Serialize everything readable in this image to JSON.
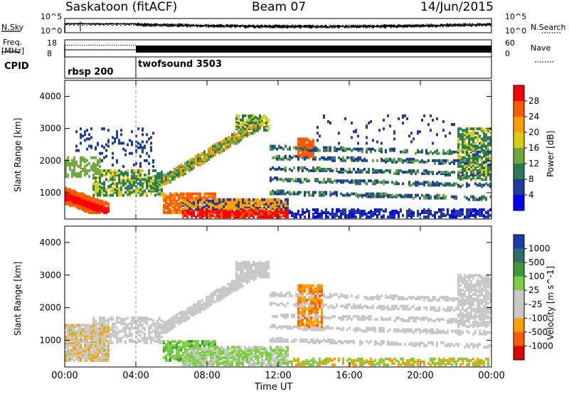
{
  "title": {
    "site": "Saskatoon (fitACF)",
    "beam": "Beam 07",
    "date": "14/Jun/2015"
  },
  "strips": {
    "nsky_label": "N.Sky",
    "nsearch_label": "N.Search",
    "freq_label_1": "Freq.",
    "freq_label_2": "[MHz]",
    "nave_label": "Nave",
    "cpid_label": "CPID",
    "noise_ticks_left": [
      "10^5",
      "10^0"
    ],
    "noise_ticks_right": [
      "10^5",
      "10^0"
    ],
    "freq_ticks": [
      "18",
      "8"
    ],
    "nave_ticks": [
      "60",
      "0"
    ],
    "cpid_segments": [
      {
        "name": "rbsp 200",
        "start_hour": 0
      },
      {
        "name": "twofsound 3503",
        "start_hour": 4
      }
    ]
  },
  "chart_data": [
    {
      "type": "heatmap",
      "title": "",
      "xlabel": "Time UT",
      "ylabel": "Slant Range [km]",
      "x_range_hours": [
        0,
        24
      ],
      "y_range_km": [
        180,
        4500
      ],
      "x_ticks": [
        "00:00",
        "04:00",
        "08:00",
        "12:00",
        "16:00",
        "20:00",
        "00:00"
      ],
      "y_ticks": [
        "4000",
        "3000",
        "2000",
        "1000"
      ],
      "y_tick_values": [
        4000,
        3000,
        2000,
        1000
      ],
      "colorbar": {
        "label": "Power [dB]",
        "ticks": [
          "28",
          "24",
          "20",
          "16",
          "12",
          "8",
          "4"
        ],
        "colors": [
          "#ff0000",
          "#ff5a00",
          "#ff9e00",
          "#d8cc10",
          "#6fa83c",
          "#2a7a55",
          "#223a9c",
          "#0000ff"
        ]
      },
      "features": [
        {
          "name": "dayside ground scatter arc",
          "hours": [
            5.5,
            10.5
          ],
          "range_km": [
            1300,
            3300
          ],
          "peak_db": 18
        },
        {
          "name": "evening near-range scatter",
          "hours": [
            0,
            2.5
          ],
          "range_km": [
            400,
            2000
          ],
          "peak_db": 28
        },
        {
          "name": "near-range E region",
          "hours": [
            6.5,
            12
          ],
          "range_km": [
            250,
            900
          ],
          "peak_db": 28
        },
        {
          "name": "band echoes",
          "hours": [
            14,
            24
          ],
          "range_km": [
            900,
            2600
          ],
          "peak_db": 10
        }
      ]
    },
    {
      "type": "heatmap",
      "title": "",
      "xlabel": "Time UT",
      "ylabel": "Slant Range [km]",
      "x_range_hours": [
        0,
        24
      ],
      "y_range_km": [
        180,
        4500
      ],
      "x_ticks": [
        "00:00",
        "04:00",
        "08:00",
        "12:00",
        "16:00",
        "20:00",
        "00:00"
      ],
      "y_ticks": [
        "4000",
        "3000",
        "2000",
        "1000"
      ],
      "y_tick_values": [
        4000,
        3000,
        2000,
        1000
      ],
      "colorbar": {
        "label": "Velocity [m s^-1]",
        "ticks": [
          "1000",
          "500",
          "100",
          "25",
          "-25",
          "-100",
          "-500",
          "-1000"
        ],
        "colors": [
          "#1e3ca8",
          "#2f6e6e",
          "#3c9a3c",
          "#7ccf3c",
          "#c8c8c8",
          "#c8c8c8",
          "#ff9e00",
          "#ff5a00",
          "#e10000"
        ]
      }
    }
  ]
}
